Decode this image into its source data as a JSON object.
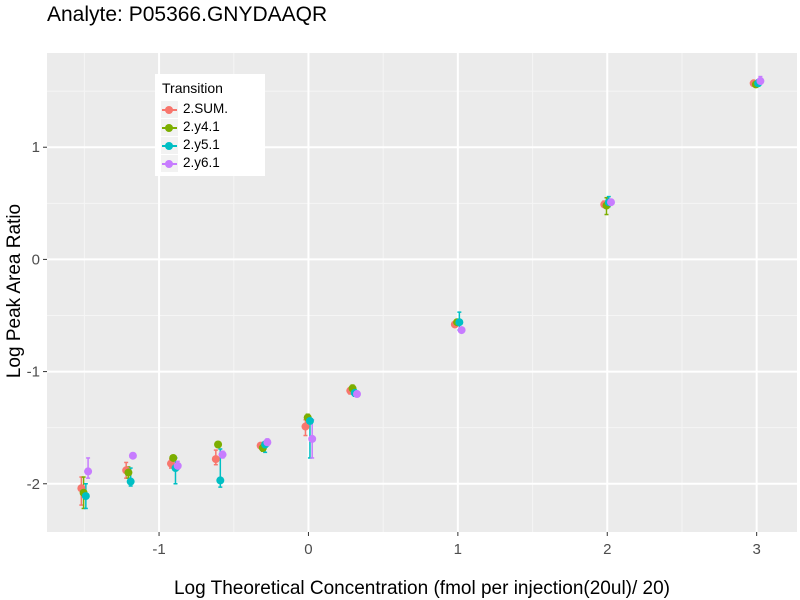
{
  "chart_data": {
    "type": "scatter",
    "title": "Analyte: P05366.GNYDAAQR",
    "xlabel": "Log Theoretical Concentration (fmol per injection(20ul)/ 20)",
    "ylabel": "Log Peak Area Ratio",
    "xlim": [
      -1.75,
      3.27
    ],
    "ylim": [
      -2.43,
      1.84
    ],
    "xticks": [
      -1,
      0,
      1,
      2,
      3
    ],
    "xtick_labels": [
      "-1",
      "0",
      "1",
      "2",
      "3"
    ],
    "yticks": [
      -2,
      -1,
      0,
      1
    ],
    "ytick_labels": [
      "-2",
      "-1",
      "0",
      "1"
    ],
    "grid": true,
    "legend": {
      "title": "Transition",
      "placement": "top-left inside"
    },
    "x": [
      -1.5,
      -1.2,
      -0.9,
      -0.6,
      -0.3,
      0.0,
      0.3,
      1.0,
      2.0,
      3.0
    ],
    "series": [
      {
        "name": "2.SUM.",
        "color": "#F8766D",
        "offset": -0.02,
        "values": [
          -2.04,
          -1.88,
          -1.82,
          -1.78,
          -1.66,
          -1.49,
          -1.17,
          -0.58,
          0.49,
          1.57
        ],
        "err_low": [
          -2.19,
          -1.95,
          -1.86,
          -1.83,
          -1.68,
          -1.57,
          -1.2,
          -0.6,
          0.47,
          1.55
        ],
        "err_high": [
          -1.94,
          -1.81,
          -1.78,
          -1.7,
          -1.64,
          -1.43,
          -1.15,
          -0.56,
          0.52,
          1.59
        ]
      },
      {
        "name": "2.y4.1",
        "color": "#7CAE00",
        "offset": -0.005,
        "values": [
          -2.08,
          -1.9,
          -1.77,
          -1.65,
          -1.68,
          -1.41,
          -1.15,
          -0.56,
          0.48,
          1.56
        ],
        "err_low": [
          -2.22,
          -1.95,
          -1.79,
          -1.67,
          -1.71,
          -1.46,
          -1.18,
          -0.58,
          0.4,
          1.54
        ],
        "err_high": [
          -1.94,
          -1.85,
          -1.75,
          -1.63,
          -1.65,
          -1.38,
          -1.12,
          -0.54,
          0.55,
          1.58
        ]
      },
      {
        "name": "2.y5.1",
        "color": "#00BFC4",
        "offset": 0.01,
        "values": [
          -2.11,
          -1.98,
          -1.86,
          -1.97,
          -1.65,
          -1.44,
          -1.19,
          -0.56,
          0.51,
          1.57
        ],
        "err_low": [
          -2.22,
          -2.02,
          -2.0,
          -2.03,
          -1.72,
          -1.77,
          -1.22,
          -0.63,
          0.47,
          1.55
        ],
        "err_high": [
          -2.0,
          -1.86,
          -1.77,
          -1.69,
          -1.63,
          -1.43,
          -1.16,
          -0.47,
          0.56,
          1.6
        ]
      },
      {
        "name": "2.y6.1",
        "color": "#C77CFF",
        "offset": 0.025,
        "values": [
          -1.89,
          -1.75,
          -1.84,
          -1.74,
          -1.63,
          -1.6,
          -1.2,
          -0.63,
          0.51,
          1.59
        ],
        "err_low": [
          -1.95,
          -1.77,
          -1.87,
          -1.77,
          -1.66,
          -1.77,
          -1.22,
          -0.65,
          0.49,
          1.57
        ],
        "err_high": [
          -1.77,
          -1.73,
          -1.8,
          -1.71,
          -1.6,
          -1.43,
          -1.18,
          -0.61,
          0.53,
          1.63
        ]
      }
    ]
  }
}
